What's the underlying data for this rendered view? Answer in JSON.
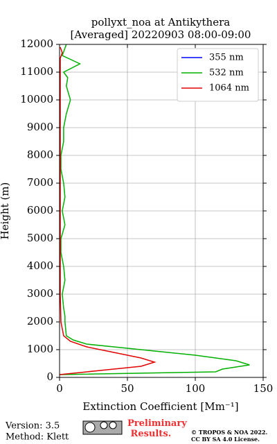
{
  "chart_data": {
    "type": "line",
    "title": "pollyxt_noa at Antikythera",
    "subtitle": "[Averaged] 20220903 08:00-09:00",
    "x_label": "Extinction Coefficient [Mm⁻¹]",
    "y_label": "Height (m)",
    "xlim": [
      0,
      150
    ],
    "xticks": [
      0,
      50,
      100,
      150
    ],
    "ylim": [
      0,
      12000
    ],
    "yticks": [
      0,
      1000,
      2000,
      3000,
      4000,
      5000,
      6000,
      7000,
      8000,
      9000,
      10000,
      11000,
      12000
    ],
    "grid": true,
    "legend": "upper right",
    "series": [
      {
        "name": "355 nm",
        "color": "#0000ff",
        "x": [],
        "y": []
      },
      {
        "name": "532 nm",
        "color": "#00b000",
        "x": [
          0,
          115,
          120,
          140,
          130,
          100,
          70,
          40,
          20,
          10,
          5,
          4,
          4,
          3,
          2,
          4,
          3,
          1,
          1,
          4,
          2,
          4,
          3,
          1,
          1,
          3,
          3,
          5,
          8,
          5,
          6,
          3,
          15,
          2,
          5
        ],
        "y": [
          100,
          200,
          300,
          450,
          600,
          800,
          950,
          1100,
          1200,
          1350,
          1500,
          2000,
          2200,
          2500,
          3000,
          3500,
          4000,
          4500,
          5000,
          5500,
          6000,
          6500,
          7000,
          7500,
          8000,
          8500,
          9000,
          9500,
          10000,
          10500,
          10800,
          11000,
          11300,
          11600,
          12000
        ]
      },
      {
        "name": "1064 nm",
        "color": "#e00000",
        "x": [
          0,
          30,
          60,
          70,
          60,
          40,
          20,
          8,
          3,
          1,
          0.5,
          0.5,
          0.5,
          2,
          0.5
        ],
        "y": [
          100,
          250,
          400,
          550,
          700,
          900,
          1100,
          1300,
          1500,
          2000,
          3000,
          7000,
          11500,
          11700,
          11900
        ]
      }
    ]
  },
  "footer": {
    "version": "Version: 3.5",
    "method": "Method: Klett",
    "preliminary": "Preliminary Results.",
    "copyright": "© TROPOS & NOA 2022.",
    "license": "CC BY SA 4.0 License."
  }
}
